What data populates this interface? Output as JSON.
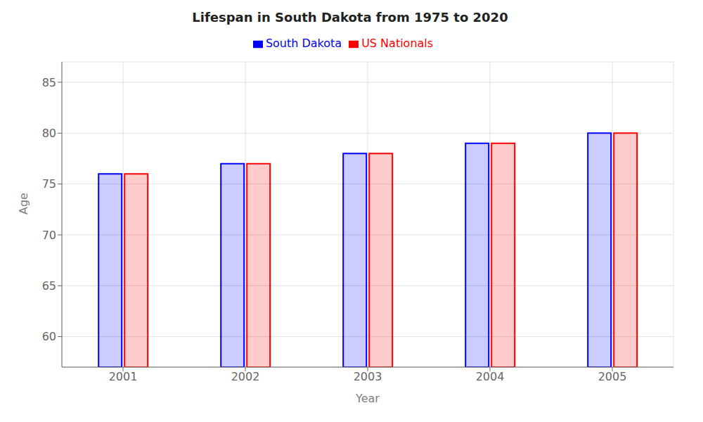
{
  "chart_data": {
    "type": "bar",
    "title": "Lifespan in South Dakota from 1975 to 2020",
    "x_label": "Year",
    "y_label": "Age",
    "categories": [
      "2001",
      "2002",
      "2003",
      "2004",
      "2005"
    ],
    "series": [
      {
        "name": "South Dakota",
        "color": "#0000ff",
        "values": [
          76,
          77,
          78,
          79,
          80
        ]
      },
      {
        "name": "US Nationals",
        "color": "#ff0000",
        "values": [
          76,
          77,
          78,
          79,
          80
        ]
      }
    ],
    "ylim": [
      57,
      87
    ],
    "yticks": [
      60,
      65,
      70,
      75,
      80,
      85
    ],
    "grid": true,
    "legend": "top"
  }
}
